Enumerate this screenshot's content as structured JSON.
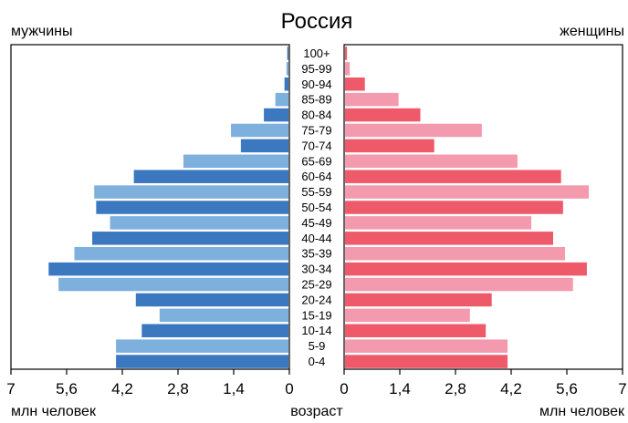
{
  "chart_data": {
    "type": "bar",
    "title": "Россия",
    "left_label": "мужчины",
    "right_label": "женщины",
    "center_label": "возраст",
    "unit_label_left": "млн человек",
    "unit_label_right": "млн человек",
    "xlim": [
      0,
      7
    ],
    "tick_labels": [
      "0",
      "1,4",
      "2,8",
      "4,2",
      "5,6",
      "7"
    ],
    "categories": [
      "0-4",
      "5-9",
      "10-14",
      "15-19",
      "20-24",
      "25-29",
      "30-34",
      "35-39",
      "40-44",
      "45-49",
      "50-54",
      "55-59",
      "60-64",
      "65-69",
      "70-74",
      "75-79",
      "80-84",
      "85-89",
      "90-94",
      "95-99",
      "100+"
    ],
    "series": [
      {
        "name": "мужчины",
        "values": [
          4.35,
          4.35,
          3.7,
          3.25,
          3.85,
          5.8,
          6.05,
          5.4,
          4.95,
          4.5,
          4.85,
          4.9,
          3.9,
          2.65,
          1.2,
          1.45,
          0.62,
          0.33,
          0.1,
          0.05,
          0.03
        ],
        "colors": [
          "#3c78bf",
          "#7eb0de"
        ]
      },
      {
        "name": "женщины",
        "values": [
          4.1,
          4.1,
          3.55,
          3.15,
          3.7,
          5.75,
          6.1,
          5.55,
          5.25,
          4.7,
          5.5,
          6.15,
          5.45,
          4.35,
          2.25,
          3.45,
          1.9,
          1.35,
          0.5,
          0.12,
          0.05
        ],
        "colors": [
          "#ef5a6a",
          "#f49aae"
        ]
      }
    ]
  }
}
